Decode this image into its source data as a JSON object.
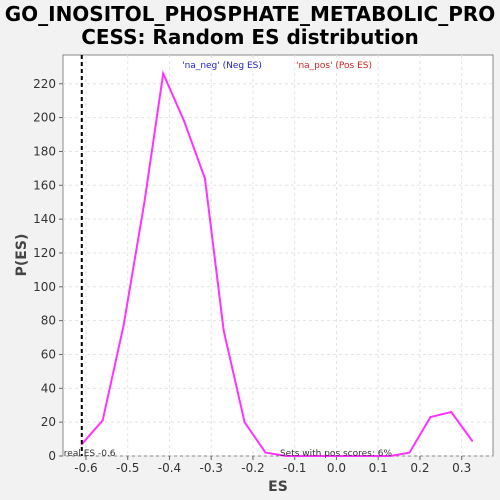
{
  "chart_data": {
    "type": "line",
    "title_line1": "GO_INOSITOL_PHOSPHATE_METABOLIC_PRO",
    "title_line2": "CESS: Random ES distribution",
    "xlabel": "ES",
    "ylabel": "P(ES)",
    "xlim": [
      -0.655,
      0.375
    ],
    "ylim": [
      0,
      237
    ],
    "x_ticks": [
      -0.6,
      -0.5,
      -0.4,
      -0.3,
      -0.2,
      -0.1,
      0.0,
      0.1,
      0.2,
      0.3
    ],
    "x_tick_labels": [
      "-0.6",
      "-0.5",
      "-0.4",
      "-0.3",
      "-0.2",
      "-0.1",
      "0.0",
      "0.1",
      "0.2",
      "0.3"
    ],
    "y_ticks": [
      0,
      20,
      40,
      60,
      80,
      100,
      120,
      140,
      160,
      180,
      200,
      220
    ],
    "y_tick_labels": [
      "0",
      "20",
      "40",
      "60",
      "80",
      "100",
      "120",
      "140",
      "160",
      "180",
      "200",
      "220"
    ],
    "grid": true,
    "legend_position": "top",
    "legend": [
      {
        "label": "'na_neg' (Neg ES)",
        "color": "#2222cc"
      },
      {
        "label": "'na_pos' (Pos ES)",
        "color": "#cc2222"
      }
    ],
    "series": [
      {
        "color": "#ff33ff",
        "x": [
          -0.61,
          -0.56,
          -0.51,
          -0.46,
          -0.415,
          -0.365,
          -0.315,
          -0.27,
          -0.22,
          -0.17,
          -0.12,
          -0.07,
          -0.02,
          0.03,
          0.08,
          0.13,
          0.175,
          0.225,
          0.275,
          0.325
        ],
        "y": [
          7,
          21,
          77,
          150,
          226,
          198,
          164,
          74,
          20,
          2,
          0,
          0,
          0,
          0,
          0,
          0,
          2,
          23,
          26,
          9
        ]
      }
    ],
    "real_es": {
      "x": -0.61,
      "label": "real ES -0.6",
      "color": "#000000"
    },
    "annotation": "Sets with pos scores: 6%"
  }
}
